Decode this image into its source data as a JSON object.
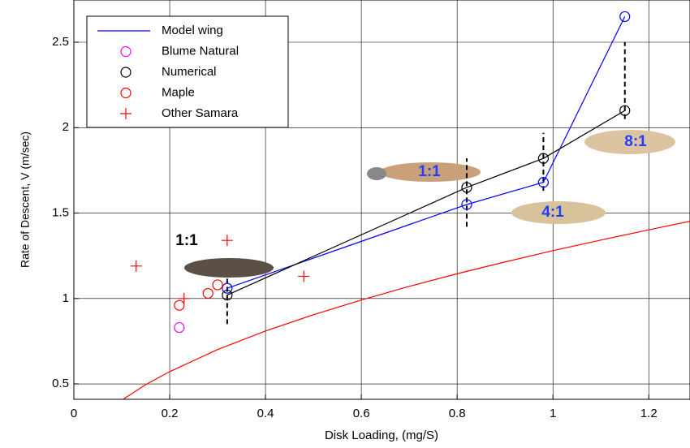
{
  "chart_data": {
    "type": "line",
    "xlabel": "Disk Loading, (mg/S)",
    "ylabel": "Rate of Descent, V (m/sec)",
    "xlim": [
      0,
      1.286
    ],
    "ylim": [
      0.41,
      2.747
    ],
    "xticks": [
      0,
      0.2,
      0.4,
      0.6,
      0.8,
      1,
      1.2
    ],
    "yticks": [
      0.5,
      1,
      1.5,
      2,
      2.5
    ],
    "grid": true,
    "legend": "upper left",
    "series": [
      {
        "name": "Model wing",
        "color": "#0000ff",
        "line": true,
        "marker": "o",
        "legend_marker": false,
        "x": [
          0.32,
          0.82,
          0.98,
          1.15
        ],
        "values": [
          1.06,
          1.55,
          1.68,
          2.65
        ]
      },
      {
        "name": "Blume Natural",
        "color": "#ff00ff",
        "line": false,
        "marker": "o",
        "x": [
          0.22
        ],
        "values": [
          0.83
        ]
      },
      {
        "name": "Numerical",
        "color": "#000000",
        "line": true,
        "marker": "o",
        "x": [
          0.32,
          0.82,
          0.98,
          1.15
        ],
        "values": [
          1.02,
          1.65,
          1.82,
          2.1
        ]
      },
      {
        "name": "Maple",
        "color": "#ff0000",
        "line": false,
        "marker": "o",
        "x": [
          0.22,
          0.28,
          0.3
        ],
        "values": [
          0.96,
          1.03,
          1.08
        ]
      },
      {
        "name": "Other Samara",
        "color": "#ff0000",
        "line": false,
        "marker": "+",
        "x": [
          0.13,
          0.23,
          0.32,
          0.48
        ],
        "values": [
          1.19,
          1.0,
          1.34,
          1.13
        ]
      },
      {
        "color": "#ff0000",
        "line": true,
        "marker": null,
        "x": [
          0.1,
          0.15,
          0.2,
          0.3,
          0.4,
          0.5,
          0.6,
          0.7,
          0.8,
          0.9,
          1.0,
          1.1,
          1.2,
          1.286
        ],
        "values": [
          0.405,
          0.496,
          0.572,
          0.701,
          0.81,
          0.905,
          0.991,
          1.071,
          1.145,
          1.214,
          1.28,
          1.342,
          1.402,
          1.452
        ]
      }
    ],
    "dashed_lines": [
      {
        "x": 0.32,
        "y": [
          0.85,
          1.13
        ]
      },
      {
        "x": 0.82,
        "y": [
          1.42,
          1.82
        ]
      },
      {
        "x": 0.98,
        "y": [
          1.63,
          1.97
        ]
      },
      {
        "x": 1.15,
        "y": [
          2.05,
          2.5
        ]
      }
    ],
    "annotations": [
      {
        "text": "1:1",
        "color": "#000000"
      },
      {
        "text": "1:1",
        "color": "#1f3fff"
      },
      {
        "text": "4:1",
        "color": "#1f3fff"
      },
      {
        "text": "8:1",
        "color": "#1f3fff"
      }
    ]
  }
}
